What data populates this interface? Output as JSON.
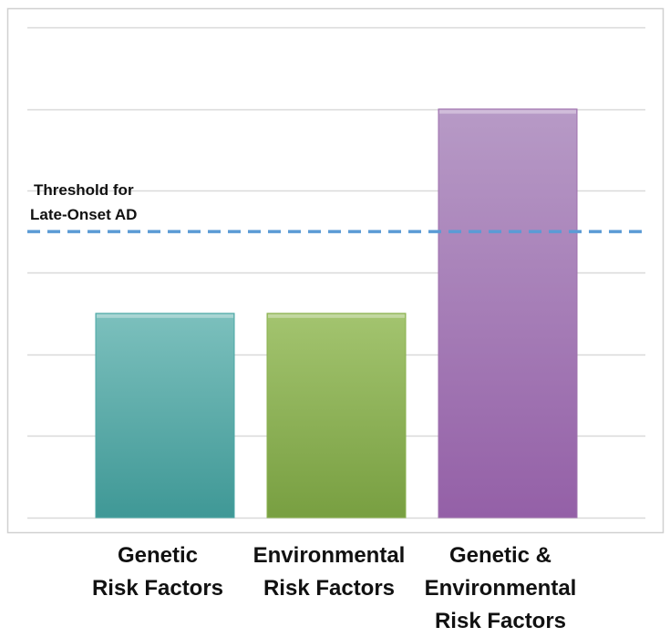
{
  "chart_data": {
    "type": "bar",
    "title": "",
    "xlabel": "",
    "ylabel": "",
    "categories": [
      [
        "Genetic",
        "Risk Factors"
      ],
      [
        "Environmental",
        "Risk Factors"
      ],
      [
        "Genetic &",
        "Environmental",
        "Risk Factors"
      ]
    ],
    "values": [
      2.5,
      2.5,
      5.0
    ],
    "ylim": [
      0,
      6
    ],
    "grid": true,
    "legend": false,
    "colors": {
      "bars": [
        "#4aa7a5",
        "#89b04e",
        "#9e6fad"
      ],
      "threshold_line": "#5b9bd5",
      "grid": "#d9d9d9",
      "frame": "#d0d0d0"
    },
    "threshold": {
      "value": 3.5,
      "label": [
        "Threshold for",
        "Late-Onset AD"
      ],
      "style": "dashed"
    }
  }
}
